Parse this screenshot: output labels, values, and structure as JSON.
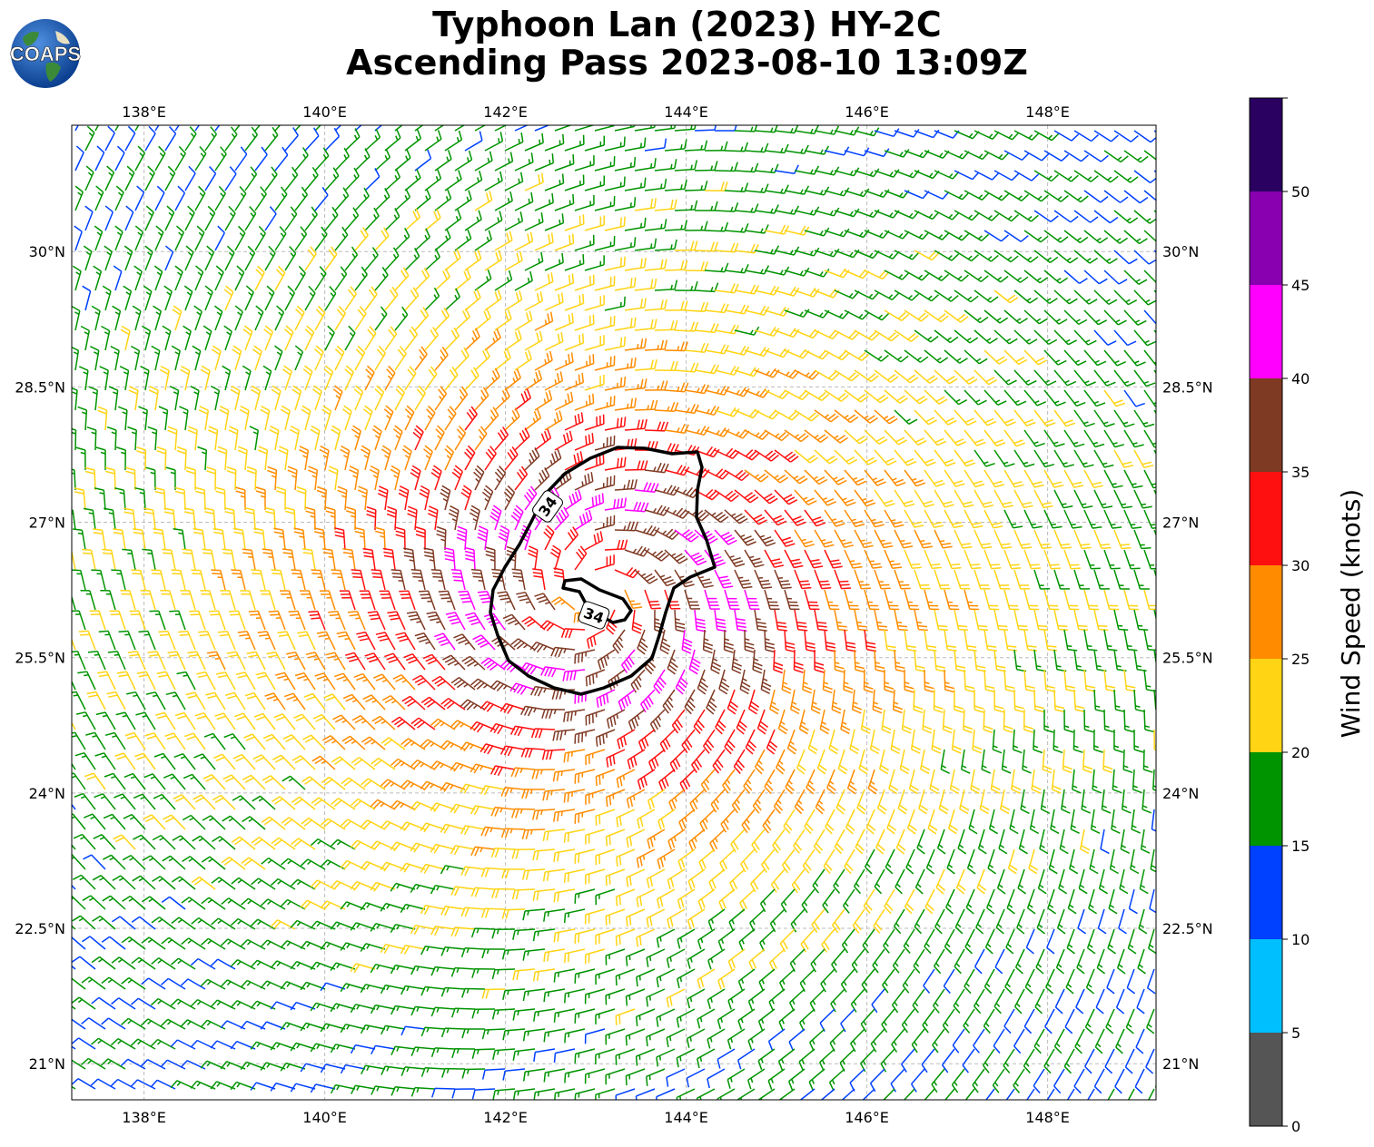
{
  "title": {
    "line1": "Typhoon Lan (2023) HY-2C",
    "line2": "Ascending Pass 2023-08-10 13:09Z"
  },
  "logo": {
    "text": "COAPS",
    "icon": "globe-logo-icon"
  },
  "map": {
    "lon_range": [
      137.2,
      149.2
    ],
    "lat_range": [
      20.6,
      31.4
    ],
    "lon_ticks": [
      "138°E",
      "140°E",
      "142°E",
      "144°E",
      "146°E",
      "148°E"
    ],
    "lat_ticks": [
      "21°N",
      "22.5°N",
      "24°N",
      "25.5°N",
      "27°N",
      "28.5°N",
      "30°N"
    ],
    "storm_center": {
      "lon": 143.0,
      "lat": 26.2
    },
    "contour": {
      "level_label": "34",
      "color": "#000000"
    }
  },
  "colorbar": {
    "label": "Wind Speed (knots)",
    "tick_labels": [
      "0",
      "5",
      "10",
      "15",
      "20",
      "25",
      "30",
      "35",
      "40",
      "45",
      "50"
    ],
    "bins": [
      {
        "min": 0,
        "max": 5,
        "color": "#555555"
      },
      {
        "min": 5,
        "max": 10,
        "color": "#00bfff"
      },
      {
        "min": 10,
        "max": 15,
        "color": "#0040ff"
      },
      {
        "min": 15,
        "max": 20,
        "color": "#009400"
      },
      {
        "min": 20,
        "max": 25,
        "color": "#ffd414"
      },
      {
        "min": 25,
        "max": 30,
        "color": "#ff8c00"
      },
      {
        "min": 30,
        "max": 35,
        "color": "#ff1010"
      },
      {
        "min": 35,
        "max": 40,
        "color": "#7f3a24"
      },
      {
        "min": 40,
        "max": 45,
        "color": "#ff00ff"
      },
      {
        "min": 45,
        "max": 50,
        "color": "#8800b0"
      },
      {
        "min": 50,
        "max": 55,
        "color": "#2a0060"
      }
    ]
  }
}
